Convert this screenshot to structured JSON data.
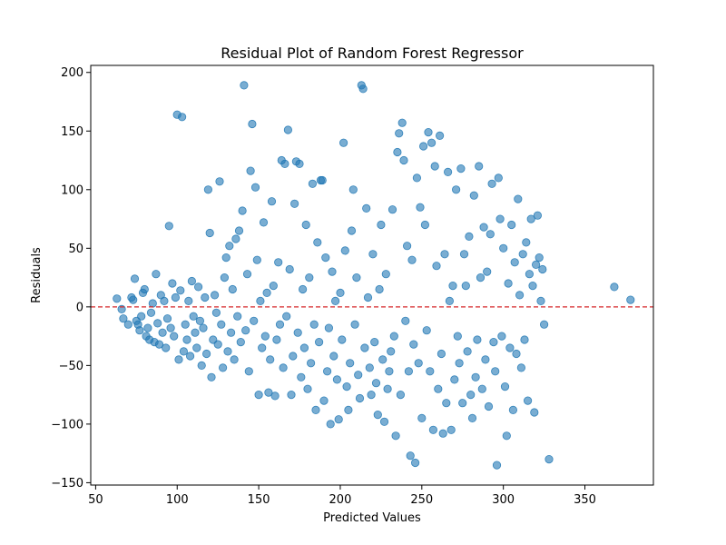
{
  "chart_data": {
    "type": "scatter",
    "title": "Residual Plot of Random Forest Regressor",
    "xlabel": "Predicted Values",
    "ylabel": "Residuals",
    "xlim": [
      47,
      392
    ],
    "ylim": [
      -152,
      206
    ],
    "xticks": [
      50,
      100,
      150,
      200,
      250,
      300,
      350
    ],
    "yticks": [
      -150,
      -100,
      -50,
      0,
      50,
      100,
      150,
      200
    ],
    "reference_line": {
      "y": 0,
      "color": "#d62728",
      "style": "dashed"
    },
    "marker_color": "#1f77b4",
    "marker_alpha": 0.6,
    "grid": false,
    "legend": "none",
    "points": [
      [
        63,
        7
      ],
      [
        66,
        -2
      ],
      [
        67,
        -10
      ],
      [
        70,
        -15
      ],
      [
        72,
        8
      ],
      [
        73,
        6
      ],
      [
        74,
        24
      ],
      [
        75,
        -12
      ],
      [
        76,
        -15
      ],
      [
        77,
        -20
      ],
      [
        78,
        -8
      ],
      [
        79,
        12
      ],
      [
        80,
        15
      ],
      [
        81,
        -25
      ],
      [
        82,
        -18
      ],
      [
        83,
        -28
      ],
      [
        84,
        -5
      ],
      [
        85,
        3
      ],
      [
        86,
        -30
      ],
      [
        87,
        28
      ],
      [
        88,
        -14
      ],
      [
        89,
        -32
      ],
      [
        90,
        10
      ],
      [
        91,
        -22
      ],
      [
        92,
        5
      ],
      [
        93,
        -35
      ],
      [
        94,
        -10
      ],
      [
        95,
        69
      ],
      [
        96,
        -18
      ],
      [
        97,
        20
      ],
      [
        98,
        -25
      ],
      [
        99,
        8
      ],
      [
        100,
        164
      ],
      [
        101,
        -45
      ],
      [
        102,
        14
      ],
      [
        103,
        162
      ],
      [
        104,
        -38
      ],
      [
        105,
        -15
      ],
      [
        106,
        -28
      ],
      [
        107,
        5
      ],
      [
        108,
        -42
      ],
      [
        109,
        22
      ],
      [
        110,
        -8
      ],
      [
        111,
        -22
      ],
      [
        112,
        -35
      ],
      [
        113,
        17
      ],
      [
        114,
        -12
      ],
      [
        115,
        -50
      ],
      [
        116,
        -18
      ],
      [
        117,
        8
      ],
      [
        118,
        -40
      ],
      [
        119,
        100
      ],
      [
        120,
        63
      ],
      [
        121,
        -60
      ],
      [
        122,
        -28
      ],
      [
        123,
        10
      ],
      [
        124,
        -5
      ],
      [
        125,
        -32
      ],
      [
        126,
        107
      ],
      [
        127,
        -15
      ],
      [
        128,
        -52
      ],
      [
        129,
        25
      ],
      [
        130,
        42
      ],
      [
        131,
        -38
      ],
      [
        132,
        52
      ],
      [
        133,
        -22
      ],
      [
        134,
        15
      ],
      [
        135,
        -45
      ],
      [
        136,
        58
      ],
      [
        137,
        -8
      ],
      [
        138,
        65
      ],
      [
        139,
        -30
      ],
      [
        140,
        82
      ],
      [
        141,
        189
      ],
      [
        142,
        -20
      ],
      [
        143,
        28
      ],
      [
        144,
        -55
      ],
      [
        145,
        116
      ],
      [
        146,
        156
      ],
      [
        147,
        -12
      ],
      [
        148,
        102
      ],
      [
        149,
        40
      ],
      [
        150,
        -75
      ],
      [
        151,
        5
      ],
      [
        152,
        -35
      ],
      [
        153,
        72
      ],
      [
        154,
        -25
      ],
      [
        155,
        12
      ],
      [
        156,
        -73
      ],
      [
        157,
        -45
      ],
      [
        158,
        90
      ],
      [
        159,
        18
      ],
      [
        160,
        -76
      ],
      [
        161,
        -28
      ],
      [
        162,
        38
      ],
      [
        163,
        -15
      ],
      [
        164,
        125
      ],
      [
        165,
        -52
      ],
      [
        166,
        122
      ],
      [
        167,
        -8
      ],
      [
        168,
        151
      ],
      [
        169,
        32
      ],
      [
        170,
        -75
      ],
      [
        171,
        -42
      ],
      [
        172,
        88
      ],
      [
        173,
        124
      ],
      [
        174,
        -22
      ],
      [
        175,
        122
      ],
      [
        176,
        -60
      ],
      [
        177,
        15
      ],
      [
        178,
        -35
      ],
      [
        179,
        70
      ],
      [
        180,
        -70
      ],
      [
        181,
        25
      ],
      [
        182,
        -48
      ],
      [
        183,
        105
      ],
      [
        184,
        -15
      ],
      [
        185,
        -88
      ],
      [
        186,
        55
      ],
      [
        187,
        -30
      ],
      [
        188,
        108
      ],
      [
        189,
        108
      ],
      [
        190,
        -80
      ],
      [
        191,
        42
      ],
      [
        192,
        -55
      ],
      [
        193,
        -18
      ],
      [
        194,
        -100
      ],
      [
        195,
        30
      ],
      [
        196,
        -42
      ],
      [
        197,
        5
      ],
      [
        198,
        -62
      ],
      [
        199,
        -96
      ],
      [
        200,
        12
      ],
      [
        201,
        -28
      ],
      [
        202,
        140
      ],
      [
        203,
        48
      ],
      [
        204,
        -68
      ],
      [
        205,
        -88
      ],
      [
        206,
        -48
      ],
      [
        207,
        65
      ],
      [
        208,
        100
      ],
      [
        209,
        -15
      ],
      [
        210,
        25
      ],
      [
        211,
        -58
      ],
      [
        212,
        -78
      ],
      [
        213,
        189
      ],
      [
        214,
        186
      ],
      [
        215,
        -35
      ],
      [
        216,
        84
      ],
      [
        217,
        8
      ],
      [
        218,
        -52
      ],
      [
        219,
        -75
      ],
      [
        220,
        45
      ],
      [
        221,
        -30
      ],
      [
        222,
        -65
      ],
      [
        223,
        -92
      ],
      [
        224,
        15
      ],
      [
        225,
        70
      ],
      [
        226,
        -45
      ],
      [
        227,
        -98
      ],
      [
        228,
        28
      ],
      [
        229,
        -70
      ],
      [
        230,
        -55
      ],
      [
        231,
        -38
      ],
      [
        232,
        83
      ],
      [
        233,
        -25
      ],
      [
        234,
        -110
      ],
      [
        235,
        132
      ],
      [
        236,
        148
      ],
      [
        237,
        -75
      ],
      [
        238,
        157
      ],
      [
        239,
        125
      ],
      [
        240,
        -12
      ],
      [
        241,
        52
      ],
      [
        242,
        -55
      ],
      [
        243,
        -127
      ],
      [
        244,
        40
      ],
      [
        245,
        -32
      ],
      [
        246,
        -133
      ],
      [
        247,
        110
      ],
      [
        248,
        -48
      ],
      [
        249,
        85
      ],
      [
        250,
        -95
      ],
      [
        251,
        137
      ],
      [
        252,
        70
      ],
      [
        253,
        -20
      ],
      [
        254,
        149
      ],
      [
        255,
        -55
      ],
      [
        256,
        140
      ],
      [
        257,
        -105
      ],
      [
        258,
        120
      ],
      [
        259,
        35
      ],
      [
        260,
        -70
      ],
      [
        261,
        146
      ],
      [
        262,
        -40
      ],
      [
        263,
        -108
      ],
      [
        264,
        45
      ],
      [
        265,
        -82
      ],
      [
        266,
        115
      ],
      [
        267,
        5
      ],
      [
        268,
        -105
      ],
      [
        269,
        18
      ],
      [
        270,
        -62
      ],
      [
        271,
        100
      ],
      [
        272,
        -25
      ],
      [
        273,
        -48
      ],
      [
        274,
        118
      ],
      [
        275,
        -82
      ],
      [
        276,
        45
      ],
      [
        277,
        18
      ],
      [
        278,
        -38
      ],
      [
        279,
        60
      ],
      [
        280,
        -75
      ],
      [
        281,
        -95
      ],
      [
        282,
        95
      ],
      [
        283,
        -60
      ],
      [
        284,
        -28
      ],
      [
        285,
        120
      ],
      [
        286,
        25
      ],
      [
        287,
        -70
      ],
      [
        288,
        68
      ],
      [
        289,
        -45
      ],
      [
        290,
        30
      ],
      [
        291,
        -85
      ],
      [
        292,
        62
      ],
      [
        293,
        105
      ],
      [
        294,
        -30
      ],
      [
        295,
        -55
      ],
      [
        296,
        -135
      ],
      [
        297,
        110
      ],
      [
        298,
        75
      ],
      [
        299,
        -25
      ],
      [
        300,
        50
      ],
      [
        301,
        -68
      ],
      [
        302,
        -110
      ],
      [
        303,
        20
      ],
      [
        304,
        -35
      ],
      [
        305,
        70
      ],
      [
        306,
        -88
      ],
      [
        307,
        38
      ],
      [
        308,
        -40
      ],
      [
        309,
        92
      ],
      [
        310,
        10
      ],
      [
        311,
        -52
      ],
      [
        312,
        45
      ],
      [
        313,
        -28
      ],
      [
        314,
        55
      ],
      [
        315,
        -80
      ],
      [
        316,
        28
      ],
      [
        317,
        75
      ],
      [
        318,
        18
      ],
      [
        319,
        -90
      ],
      [
        320,
        36
      ],
      [
        321,
        78
      ],
      [
        322,
        42
      ],
      [
        323,
        5
      ],
      [
        324,
        32
      ],
      [
        325,
        -15
      ],
      [
        328,
        -130
      ],
      [
        368,
        17
      ],
      [
        378,
        6
      ]
    ]
  }
}
